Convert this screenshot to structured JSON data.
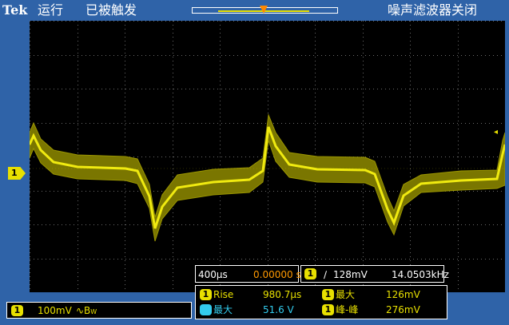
{
  "top": {
    "brand": "Tek",
    "run_state": "运行",
    "trigger_state": "已被触发",
    "noise_filter": "噪声滤波器关闭"
  },
  "channel": {
    "marker_label": "1",
    "scale": "100mV",
    "bw_symbol": "∿B",
    "bw_sub": "W"
  },
  "timebase": {
    "scale": "400µs",
    "position": "0.00000 s"
  },
  "trigger": {
    "source_label": "1",
    "slope_symbol": "∕",
    "level": "128mV",
    "frequency": "14.0503kHz"
  },
  "measurements": [
    {
      "source": "1",
      "label": "Rise",
      "value": "980.7µs"
    },
    {
      "source": "1",
      "label": "最大",
      "value": "126mV"
    },
    {
      "source": "2",
      "label": "最大",
      "value": "51.6 V"
    },
    {
      "source": "1",
      "label": "峰-峰",
      "value": "276mV"
    }
  ],
  "colors": {
    "ch1": "#e8e000",
    "ch2": "#33ccee",
    "trigger_marker": "#ff8800",
    "bezel": "#2f63a8",
    "screen": "#000000"
  },
  "icons": {
    "trigger_position": "orange-down-triangle",
    "channel_marker": "yellow-arrow-tag",
    "trigger_level": "yellow-left-arrow"
  }
}
